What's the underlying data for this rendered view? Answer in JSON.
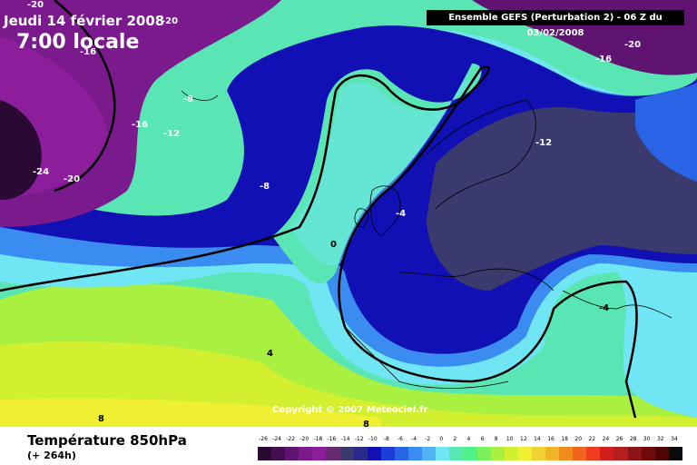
{
  "header": {
    "date": "Jeudi 14 février 2008",
    "hour": "7:00 locale",
    "run": "Ensemble GEFS (Perturbation 2)  -  06 Z du 03/02/2008"
  },
  "copyright": "Copyright © 2007 Meteociel.fr",
  "footer": {
    "parameter": "Température 850hPa",
    "lead_time": "(+ 264h)"
  },
  "map_labels": [
    {
      "text": "-20"
    },
    {
      "text": "-20"
    },
    {
      "text": "-16"
    },
    {
      "text": "-20"
    },
    {
      "text": "-16"
    },
    {
      "text": "-8"
    },
    {
      "text": "-16"
    },
    {
      "text": "-12"
    },
    {
      "text": "-24"
    },
    {
      "text": "-20"
    },
    {
      "text": "-8"
    },
    {
      "text": "-12"
    },
    {
      "text": "-4"
    },
    {
      "text": "0"
    },
    {
      "text": "-4"
    },
    {
      "text": "4"
    },
    {
      "text": "8"
    },
    {
      "text": "8"
    }
  ],
  "scale": {
    "labels": [
      "-26",
      "-24",
      "-22",
      "-20",
      "-18",
      "-16",
      "-14",
      "-12",
      "-10",
      "-8",
      "-6",
      "-4",
      "-2",
      "0",
      "2",
      "4",
      "6",
      "8",
      "10",
      "12",
      "14",
      "16",
      "18",
      "20",
      "22",
      "24",
      "26",
      "28",
      "30",
      "32",
      "34"
    ],
    "colors": [
      "#2a0a33",
      "#44104f",
      "#5e1470",
      "#7a1a8c",
      "#8c1e9c",
      "#6a2a6e",
      "#3a3a6e",
      "#2a2a8a",
      "#1010b4",
      "#1e3cd8",
      "#2a64e6",
      "#3a8cf0",
      "#50b4f4",
      "#70e6f4",
      "#5ae6b4",
      "#50f08a",
      "#7cf05a",
      "#aaf040",
      "#d2f030",
      "#f0f032",
      "#f0d232",
      "#f0b428",
      "#f08c1e",
      "#f0641e",
      "#f03c1e",
      "#d21e1e",
      "#b41e1e",
      "#8c1414",
      "#6e0a0a",
      "#500505",
      "#0a0a0a"
    ]
  }
}
